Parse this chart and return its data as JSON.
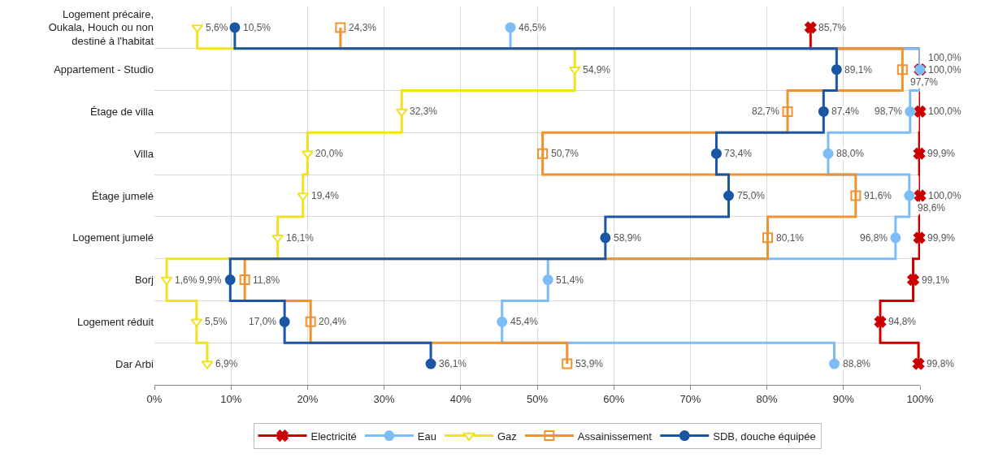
{
  "chart_data": {
    "type": "step",
    "orientation": "horizontal",
    "categories": [
      "Logement précaire, Oukala, Houch ou non destiné à l'habitat",
      "Appartement - Studio",
      "Étage de villa",
      "Villa",
      "Étage jumelé",
      "Logement jumelé",
      "Borj",
      "Logement réduit",
      "Dar Arbi"
    ],
    "series": [
      {
        "name": "Electricité",
        "color": "#cc0000",
        "marker": "cross",
        "values": [
          85.7,
          100.0,
          100.0,
          99.9,
          100.0,
          99.9,
          99.1,
          94.8,
          99.8
        ],
        "value_labels": [
          "85,7%",
          "100,0%",
          "100,0%",
          "99,9%",
          "100,0%",
          "99,9%",
          "99,1%",
          "94,8%",
          "99,8%"
        ]
      },
      {
        "name": "Eau",
        "color": "#7dbdf5",
        "marker": "circle",
        "values": [
          46.5,
          100.0,
          98.7,
          88.0,
          98.6,
          96.8,
          51.4,
          45.4,
          88.8
        ],
        "value_labels": [
          "46,5%",
          "100,0%",
          "98,7%",
          "88,0%",
          "98,6%",
          "96,8%",
          "51,4%",
          "45,4%",
          "88,8%"
        ]
      },
      {
        "name": "Gaz",
        "color": "#f0e21e",
        "marker": "triangle",
        "values": [
          5.6,
          54.9,
          32.3,
          20.0,
          19.4,
          16.1,
          1.6,
          5.5,
          6.9
        ],
        "value_labels": [
          "5,6%",
          "54,9%",
          "32,3%",
          "20,0%",
          "19,4%",
          "16,1%",
          "1,6%",
          "5,5%",
          "6,9%"
        ]
      },
      {
        "name": "Assainissement",
        "color": "#f0922e",
        "marker": "square",
        "values": [
          24.3,
          97.7,
          82.7,
          50.7,
          91.6,
          80.1,
          11.8,
          20.4,
          53.9
        ],
        "value_labels": [
          "24,3%",
          "97,7%",
          "82,7%",
          "50,7%",
          "91,6%",
          "80,1%",
          "11,8%",
          "20,4%",
          "53,9%"
        ]
      },
      {
        "name": "SDB, douche équipée",
        "color": "#1a56a4",
        "marker": "circle",
        "values": [
          10.5,
          89.1,
          87.4,
          73.4,
          75.0,
          58.9,
          9.9,
          17.0,
          36.1
        ],
        "value_labels": [
          "10,5%",
          "89,1%",
          "87,4%",
          "73,4%",
          "75,0%",
          "58,9%",
          "9,9%",
          "17,0%",
          "36,1%"
        ]
      }
    ],
    "xlim": [
      0,
      100
    ],
    "xticks": [
      {
        "value": 0,
        "label": "0%"
      },
      {
        "value": 10,
        "label": "10%"
      },
      {
        "value": 20,
        "label": "20%"
      },
      {
        "value": 30,
        "label": "30%"
      },
      {
        "value": 40,
        "label": "40%"
      },
      {
        "value": 50,
        "label": "50%"
      },
      {
        "value": 60,
        "label": "60%"
      },
      {
        "value": 70,
        "label": "70%"
      },
      {
        "value": 80,
        "label": "80%"
      },
      {
        "value": 90,
        "label": "90%"
      },
      {
        "value": 100,
        "label": "100%"
      }
    ],
    "grid": true,
    "legend": "bottom"
  }
}
